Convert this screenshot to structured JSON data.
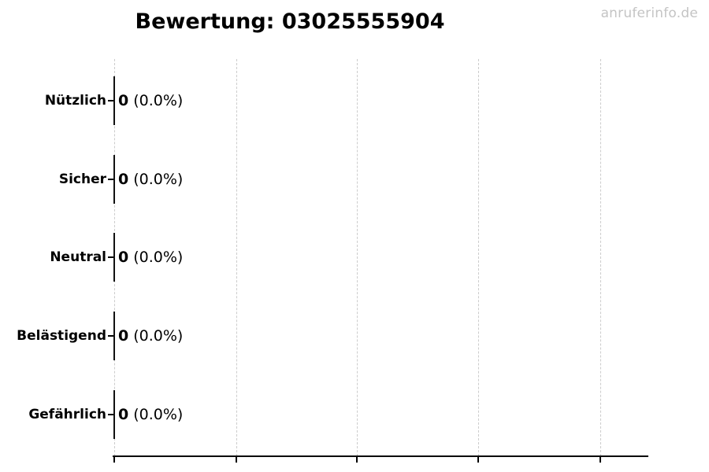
{
  "page": {
    "watermark": "anruferinfo.de",
    "background": "#ffffff"
  },
  "colors": {
    "text": "#000000",
    "grid": "#cccccc",
    "axis": "#000000",
    "bar_edge": "#111111",
    "watermark": "#c4c4c4"
  },
  "chart_data": {
    "type": "bar",
    "orientation": "horizontal",
    "title": "Bewertung: 03025555904",
    "categories": [
      "Nützlich",
      "Sicher",
      "Neutral",
      "Belästigend",
      "Gefährlich"
    ],
    "values": [
      0,
      0,
      0,
      0,
      0
    ],
    "percentages": [
      0.0,
      0.0,
      0.0,
      0.0,
      0.0
    ],
    "pct_labels": [
      "(0.0%)",
      "(0.0%)",
      "(0.0%)",
      "(0.0%)",
      "(0.0%)"
    ],
    "xlabel": "",
    "ylabel": "",
    "x_tick_labels": [],
    "x_tick_count": 5,
    "grid": "vertical-dashed",
    "legend": "none"
  }
}
